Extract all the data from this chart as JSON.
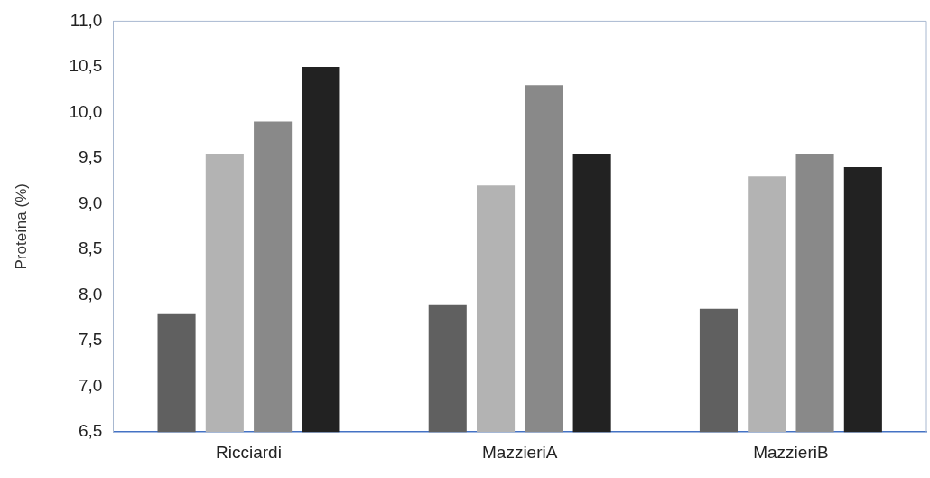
{
  "chart_data": {
    "type": "bar",
    "ylabel": "Proteína (%)",
    "categories": [
      "Ricciardi",
      "MazzieriA",
      "MazzieriB"
    ],
    "series": [
      {
        "color": "#606060",
        "values": [
          7.8,
          7.9,
          7.85
        ]
      },
      {
        "color": "#b3b3b3",
        "values": [
          9.55,
          9.2,
          9.3
        ]
      },
      {
        "color": "#898989",
        "values": [
          9.9,
          10.3,
          9.55
        ]
      },
      {
        "color": "#222222",
        "values": [
          10.5,
          9.55,
          9.4
        ]
      }
    ],
    "ylim": [
      6.5,
      11.0
    ],
    "yticks": [
      {
        "value": 6.5,
        "label": "6,5"
      },
      {
        "value": 7,
        "label": "7,0"
      },
      {
        "value": 7.5,
        "label": "7,5"
      },
      {
        "value": 8,
        "label": "8,0"
      },
      {
        "value": 8.5,
        "label": "8,5"
      },
      {
        "value": 9,
        "label": "9,0"
      },
      {
        "value": 9.5,
        "label": "9,5"
      },
      {
        "value": 10,
        "label": "10,0"
      },
      {
        "value": 10.5,
        "label": "10,5"
      },
      {
        "value": 11,
        "label": "11,0"
      }
    ],
    "grid": false,
    "legend": false
  }
}
